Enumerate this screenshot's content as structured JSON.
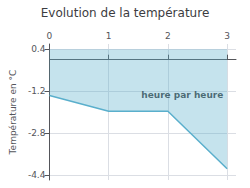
{
  "chart_data": {
    "type": "line",
    "title": "Evolution de la température",
    "ylabel": "Température en °C",
    "x": [
      0,
      1,
      2,
      3
    ],
    "values": [
      -1.37,
      -1.97,
      -1.97,
      -4.17
    ],
    "fill_top": 0.4,
    "color": "#5aafcc",
    "xlim": [
      0,
      3.15
    ],
    "xticks": [
      0,
      1,
      2,
      3
    ],
    "ylim": [
      -4.6,
      0.6
    ],
    "yticks": [
      0.4,
      -1.2,
      -2.8,
      -4.4
    ],
    "grid": true,
    "annotations": [
      {
        "text": "heure par heure",
        "x": 1.55,
        "y": -1.35
      }
    ]
  }
}
